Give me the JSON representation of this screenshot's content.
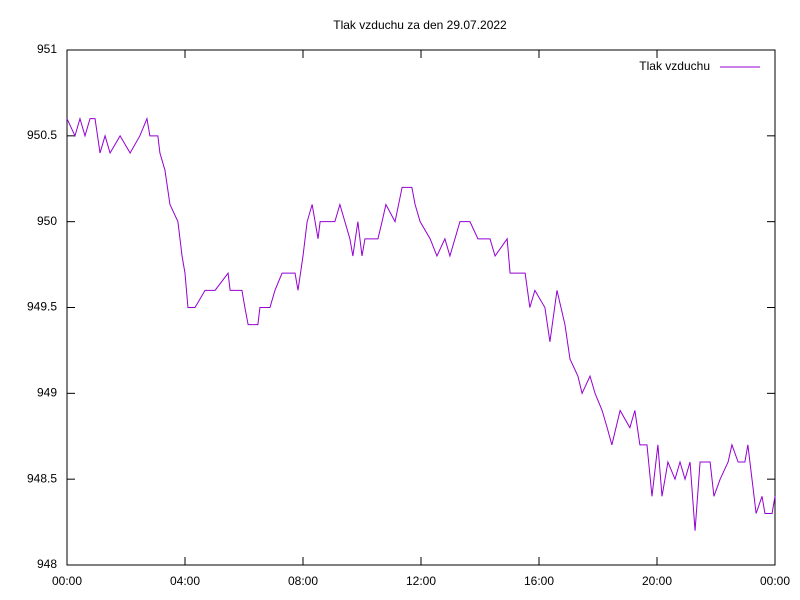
{
  "chart_data": {
    "type": "line",
    "title": "Tlak vzduchu za den 29.07.2022",
    "x": [
      0,
      0.27,
      0.44,
      0.61,
      0.78,
      0.95,
      1.12,
      1.29,
      1.46,
      1.8,
      2.14,
      2.47,
      2.71,
      2.81,
      3.08,
      3.15,
      3.32,
      3.49,
      3.76,
      3.9,
      4.0,
      4.1,
      4.34,
      4.68,
      5.02,
      5.46,
      5.53,
      5.93,
      6.03,
      6.14,
      6.47,
      6.54,
      6.88,
      7.05,
      7.29,
      7.73,
      7.83,
      8.0,
      8.14,
      8.31,
      8.51,
      8.58,
      9.08,
      9.25,
      9.42,
      9.59,
      9.69,
      9.86,
      10.0,
      10.1,
      10.54,
      10.68,
      10.81,
      11.12,
      11.36,
      11.69,
      11.8,
      11.97,
      12.31,
      12.54,
      12.81,
      12.98,
      13.15,
      13.32,
      13.66,
      13.93,
      14.34,
      14.51,
      14.92,
      15.02,
      15.53,
      15.69,
      15.86,
      16.2,
      16.37,
      16.61,
      16.88,
      17.05,
      17.32,
      17.46,
      17.73,
      17.9,
      18.14,
      18.31,
      18.47,
      18.75,
      19.08,
      19.25,
      19.42,
      19.66,
      19.83,
      20.03,
      20.17,
      20.37,
      20.61,
      20.78,
      20.95,
      21.12,
      21.29,
      21.46,
      21.8,
      21.93,
      22.14,
      22.41,
      22.54,
      22.75,
      22.98,
      23.08,
      23.22,
      23.36,
      23.56,
      23.66,
      23.9,
      24
    ],
    "series": [
      {
        "name": "Tlak vzduchu",
        "color": "#9400d3",
        "values": [
          950.6,
          950.5,
          950.6,
          950.5,
          950.6,
          950.6,
          950.4,
          950.5,
          950.4,
          950.5,
          950.4,
          950.5,
          950.6,
          950.5,
          950.5,
          950.4,
          950.3,
          950.1,
          950.0,
          949.8,
          949.7,
          949.5,
          949.5,
          949.6,
          949.6,
          949.7,
          949.6,
          949.6,
          949.5,
          949.4,
          949.4,
          949.5,
          949.5,
          949.6,
          949.7,
          949.7,
          949.6,
          949.8,
          950.0,
          950.1,
          949.9,
          950.0,
          950.0,
          950.1,
          950.0,
          949.9,
          949.8,
          950.0,
          949.8,
          949.9,
          949.9,
          950.0,
          950.1,
          950.0,
          950.2,
          950.2,
          950.1,
          950.0,
          949.9,
          949.8,
          949.9,
          949.8,
          949.9,
          950.0,
          950.0,
          949.9,
          949.9,
          949.8,
          949.9,
          949.7,
          949.7,
          949.5,
          949.6,
          949.5,
          949.3,
          949.6,
          949.4,
          949.2,
          949.1,
          949.0,
          949.1,
          949.0,
          948.9,
          948.8,
          948.7,
          948.9,
          948.8,
          948.9,
          948.7,
          948.7,
          948.4,
          948.7,
          948.4,
          948.6,
          948.5,
          948.6,
          948.5,
          948.6,
          948.2,
          948.6,
          948.6,
          948.4,
          948.5,
          948.6,
          948.7,
          948.6,
          948.6,
          948.7,
          948.5,
          948.3,
          948.4,
          948.3,
          948.3,
          948.4
        ]
      }
    ],
    "xlim": [
      0,
      24
    ],
    "xticks": [
      {
        "value": 0,
        "label": "00:00"
      },
      {
        "value": 4,
        "label": "04:00"
      },
      {
        "value": 8,
        "label": "08:00"
      },
      {
        "value": 12,
        "label": "12:00"
      },
      {
        "value": 16,
        "label": "16:00"
      },
      {
        "value": 20,
        "label": "20:00"
      },
      {
        "value": 24,
        "label": "00:00"
      }
    ],
    "ylim": [
      948,
      951
    ],
    "yticks": [
      948,
      948.5,
      949,
      949.5,
      950,
      950.5,
      951
    ],
    "grid": false,
    "legend": "top-right"
  }
}
